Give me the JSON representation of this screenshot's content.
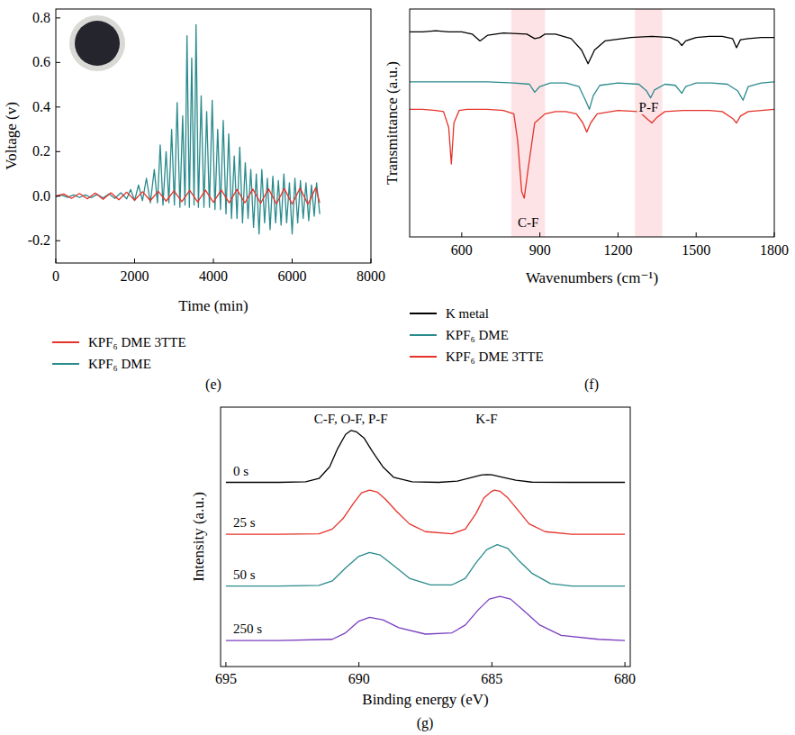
{
  "chart_data": [
    {
      "panel": "(e)",
      "type": "line",
      "xlabel": "Time (min)",
      "ylabel": "Voltage (v)",
      "xlim": [
        0,
        8000
      ],
      "ylim": [
        -0.3,
        0.84
      ],
      "xticks": [
        0,
        2000,
        4000,
        6000,
        8000
      ],
      "yticks": [
        -0.2,
        {
          "value": 0,
          "label": "0.0"
        },
        0.2,
        0.4,
        0.6,
        0.8
      ],
      "grid": false,
      "legend": "bottom",
      "series": [
        {
          "name": "KPF₆ DME 3TTE",
          "color": "#e5332a",
          "x": [
            0,
            200,
            400,
            600,
            800,
            1000,
            1200,
            1400,
            1600,
            1800,
            2000,
            2200,
            2400,
            2600,
            2800,
            3000,
            3200,
            3400,
            3600,
            3800,
            4000,
            4200,
            4400,
            4600,
            4800,
            5000,
            5200,
            5400,
            5600,
            5800,
            6000,
            6200,
            6400,
            6600,
            6700
          ],
          "values": [
            0,
            0.01,
            -0.01,
            0.012,
            -0.012,
            0.014,
            -0.014,
            0.015,
            -0.016,
            0.018,
            -0.018,
            0.02,
            -0.02,
            0.022,
            -0.022,
            0.024,
            -0.025,
            0.026,
            -0.026,
            0.027,
            -0.028,
            0.028,
            -0.03,
            0.03,
            -0.03,
            0.032,
            -0.032,
            0.033,
            -0.034,
            0.034,
            -0.035,
            0.036,
            -0.036,
            0.038,
            -0.03
          ]
        },
        {
          "name": "KPF₆ DME",
          "color": "#2a8a8c",
          "x": [
            0,
            150,
            300,
            450,
            600,
            750,
            900,
            1050,
            1200,
            1350,
            1500,
            1650,
            1800,
            1900,
            2000,
            2100,
            2200,
            2300,
            2400,
            2500,
            2580,
            2650,
            2720,
            2800,
            2870,
            2940,
            3010,
            3080,
            3150,
            3220,
            3280,
            3330,
            3390,
            3450,
            3510,
            3560,
            3620,
            3690,
            3760,
            3830,
            3900,
            3970,
            4040,
            4110,
            4180,
            4250,
            4320,
            4390,
            4460,
            4530,
            4600,
            4670,
            4740,
            4810,
            4880,
            4950,
            5020,
            5090,
            5160,
            5230,
            5300,
            5370,
            5440,
            5510,
            5580,
            5650,
            5720,
            5790,
            5860,
            5930,
            6000,
            6070,
            6140,
            6210,
            6280,
            6350,
            6420,
            6490,
            6560,
            6620,
            6700
          ],
          "values": [
            0,
            0.005,
            -0.005,
            0.006,
            -0.006,
            0.006,
            -0.007,
            0.008,
            -0.008,
            0.01,
            -0.01,
            0.015,
            -0.012,
            0.03,
            -0.02,
            0.05,
            -0.02,
            0.08,
            -0.03,
            0.12,
            -0.03,
            0.23,
            -0.04,
            0.2,
            -0.03,
            0.3,
            -0.04,
            0.42,
            -0.05,
            0.36,
            -0.04,
            0.72,
            -0.05,
            0.62,
            -0.04,
            0.77,
            -0.05,
            0.45,
            -0.05,
            0.38,
            -0.05,
            0.43,
            -0.06,
            0.3,
            -0.06,
            0.34,
            -0.08,
            0.28,
            -0.1,
            0.18,
            -0.1,
            0.22,
            -0.12,
            0.15,
            -0.1,
            0.12,
            -0.14,
            0.1,
            -0.17,
            0.12,
            -0.12,
            0.08,
            -0.15,
            0.09,
            -0.12,
            0.07,
            -0.13,
            0.1,
            -0.12,
            0.06,
            -0.17,
            0.08,
            -0.12,
            0.07,
            -0.1,
            0.06,
            -0.11,
            0.05,
            -0.09,
            0.06,
            -0.08
          ]
        }
      ]
    },
    {
      "panel": "(f)",
      "type": "line",
      "xlabel": "Wavenumbers (cm⁻¹)",
      "ylabel": "Transmittance (a.u.)",
      "xlim": [
        400,
        1800
      ],
      "ylim": [
        0,
        1
      ],
      "xticks": [
        600,
        900,
        1200,
        1500,
        1800
      ],
      "grid": false,
      "legend": "bottom",
      "tick_labels": "x",
      "bands": [
        {
          "x0": 790,
          "x1": 920,
          "label": "C-F"
        },
        {
          "x0": 1265,
          "x1": 1370,
          "label": "P-F"
        }
      ],
      "series": [
        {
          "name": "K metal",
          "color": "#000000",
          "x": [
            400,
            450,
            500,
            550,
            600,
            640,
            670,
            700,
            760,
            850,
            880,
            900,
            920,
            960,
            1020,
            1060,
            1085,
            1110,
            1150,
            1250,
            1330,
            1400,
            1430,
            1445,
            1460,
            1500,
            1550,
            1600,
            1640,
            1655,
            1670,
            1700,
            1750,
            1800
          ],
          "values": [
            0.9,
            0.9,
            0.905,
            0.9,
            0.9,
            0.89,
            0.86,
            0.885,
            0.895,
            0.89,
            0.87,
            0.875,
            0.89,
            0.89,
            0.87,
            0.82,
            0.76,
            0.82,
            0.86,
            0.875,
            0.88,
            0.875,
            0.86,
            0.84,
            0.86,
            0.875,
            0.88,
            0.88,
            0.87,
            0.83,
            0.865,
            0.87,
            0.875,
            0.875
          ]
        },
        {
          "name": "KPF₆ DME",
          "color": "#2a8a8c",
          "x": [
            400,
            500,
            600,
            700,
            800,
            860,
            880,
            900,
            940,
            1000,
            1050,
            1075,
            1090,
            1105,
            1130,
            1200,
            1280,
            1310,
            1325,
            1340,
            1380,
            1420,
            1445,
            1460,
            1500,
            1560,
            1620,
            1660,
            1680,
            1700,
            1750,
            1800
          ],
          "values": [
            0.68,
            0.68,
            0.68,
            0.68,
            0.675,
            0.67,
            0.635,
            0.66,
            0.675,
            0.675,
            0.66,
            0.6,
            0.56,
            0.62,
            0.665,
            0.675,
            0.67,
            0.64,
            0.61,
            0.645,
            0.67,
            0.665,
            0.63,
            0.66,
            0.675,
            0.675,
            0.67,
            0.64,
            0.6,
            0.66,
            0.675,
            0.68
          ]
        },
        {
          "name": "KPF₆ DME 3TTE",
          "color": "#e5332a",
          "x": [
            400,
            450,
            500,
            530,
            550,
            560,
            570,
            590,
            620,
            700,
            760,
            800,
            815,
            830,
            840,
            855,
            880,
            920,
            960,
            1000,
            1040,
            1065,
            1080,
            1095,
            1120,
            1200,
            1280,
            1310,
            1330,
            1350,
            1380,
            1450,
            1550,
            1600,
            1640,
            1655,
            1670,
            1700,
            1750,
            1800
          ],
          "values": [
            0.56,
            0.56,
            0.555,
            0.55,
            0.48,
            0.32,
            0.5,
            0.555,
            0.56,
            0.56,
            0.555,
            0.54,
            0.42,
            0.2,
            0.17,
            0.3,
            0.5,
            0.54,
            0.55,
            0.55,
            0.54,
            0.5,
            0.46,
            0.5,
            0.54,
            0.555,
            0.55,
            0.52,
            0.5,
            0.525,
            0.55,
            0.555,
            0.555,
            0.55,
            0.52,
            0.5,
            0.53,
            0.55,
            0.555,
            0.56
          ]
        }
      ]
    },
    {
      "panel": "(g)",
      "type": "line",
      "xlabel": "Binding energy (eV)",
      "ylabel": "Intensity (a.u.)",
      "xlim": [
        695.2,
        679.8
      ],
      "ylim": [
        0,
        1
      ],
      "xticks": [
        695,
        690,
        685,
        680
      ],
      "grid": false,
      "tick_labels": "x",
      "annotations": [
        {
          "text": "C-F, O-F, P-F",
          "x": 690.3
        },
        {
          "text": "K-F",
          "x": 685.2
        }
      ],
      "series": [
        {
          "name": "0 s",
          "color": "#000000",
          "x": [
            695,
            693,
            692,
            691.5,
            691.1,
            690.8,
            690.5,
            690.3,
            690.1,
            689.8,
            689.5,
            689.1,
            688.7,
            688,
            687,
            686.3,
            685.8,
            685.4,
            685.2,
            685.0,
            684.6,
            684.1,
            683.5,
            682,
            680
          ],
          "values": [
            0.71,
            0.71,
            0.712,
            0.725,
            0.77,
            0.84,
            0.895,
            0.91,
            0.905,
            0.88,
            0.83,
            0.77,
            0.73,
            0.712,
            0.71,
            0.715,
            0.728,
            0.738,
            0.74,
            0.739,
            0.73,
            0.718,
            0.711,
            0.71,
            0.71
          ]
        },
        {
          "name": "25 s",
          "color": "#e5332a",
          "x": [
            695,
            693,
            691.5,
            691,
            690.6,
            690.2,
            689.9,
            689.6,
            689.3,
            689,
            688.6,
            688.1,
            687.5,
            686.5,
            686,
            685.6,
            685.3,
            685.0,
            684.9,
            684.7,
            684.4,
            684.0,
            683.6,
            683,
            682,
            680
          ],
          "values": [
            0.51,
            0.51,
            0.512,
            0.53,
            0.57,
            0.63,
            0.67,
            0.68,
            0.672,
            0.645,
            0.6,
            0.55,
            0.52,
            0.512,
            0.53,
            0.59,
            0.65,
            0.676,
            0.68,
            0.676,
            0.65,
            0.6,
            0.55,
            0.52,
            0.51,
            0.51
          ]
        },
        {
          "name": "50 s",
          "color": "#2a8a8c",
          "x": [
            695,
            693,
            691.5,
            691,
            690.5,
            690,
            689.6,
            689.2,
            688.7,
            688.1,
            687.3,
            686.5,
            686,
            685.6,
            685.2,
            684.8,
            684.4,
            684,
            683.5,
            682.8,
            682,
            680
          ],
          "values": [
            0.31,
            0.31,
            0.313,
            0.33,
            0.38,
            0.425,
            0.44,
            0.43,
            0.39,
            0.34,
            0.315,
            0.315,
            0.34,
            0.4,
            0.45,
            0.47,
            0.455,
            0.41,
            0.36,
            0.32,
            0.31,
            0.31
          ]
        },
        {
          "name": "250 s",
          "color": "#7b3fbf",
          "x": [
            695,
            693,
            691,
            690.5,
            690,
            689.6,
            689.1,
            688.5,
            687.5,
            686.5,
            686,
            685.5,
            685.1,
            684.7,
            684.3,
            683.8,
            683.2,
            682.4,
            681,
            680
          ],
          "values": [
            0.1,
            0.1,
            0.105,
            0.13,
            0.175,
            0.19,
            0.18,
            0.15,
            0.125,
            0.13,
            0.16,
            0.22,
            0.26,
            0.27,
            0.26,
            0.215,
            0.16,
            0.12,
            0.105,
            0.1
          ]
        }
      ]
    }
  ]
}
